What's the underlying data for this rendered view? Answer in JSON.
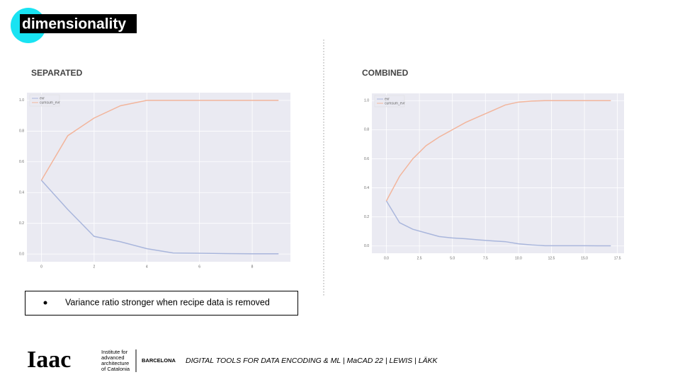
{
  "slide": {
    "title": "dimensionality",
    "bullet": "Variance ratio stronger when recipe data is removed",
    "logo": "Iaac",
    "institute": [
      "Institute for",
      "advanced",
      "architecture",
      "of Catalonia"
    ],
    "city": "BARCELONA",
    "footer": "DIGITAL TOOLS FOR DATA ENCODING & ML | MaCAD 22 | LEWIS | LÄKK"
  },
  "chart_data": [
    {
      "type": "line",
      "title": "SEPARATED",
      "legend": "upper left",
      "grid": true,
      "x": [
        0,
        1,
        2,
        3,
        4,
        5,
        6,
        7,
        8,
        9
      ],
      "series": [
        {
          "name": "evr",
          "color": "#a9b6dc",
          "values": [
            0.48,
            0.29,
            0.115,
            0.08,
            0.035,
            0.007,
            0.005,
            0.003,
            0.002,
            0.002
          ]
        },
        {
          "name": "cumsum_evr",
          "color": "#f2b59c",
          "values": [
            0.48,
            0.77,
            0.885,
            0.965,
            1.0,
            1.0,
            1.0,
            1.0,
            1.0,
            1.0
          ]
        }
      ],
      "xlim": [
        -0.55,
        9.45
      ],
      "xticks": [
        0,
        2,
        4,
        6,
        8
      ],
      "ylim": [
        -0.05,
        1.05
      ],
      "yticks": [
        {
          "value": 0,
          "label": "0.0"
        },
        0.2,
        0.4,
        0.6,
        0.8,
        {
          "value": 1,
          "label": "1.0"
        }
      ]
    },
    {
      "type": "line",
      "title": "COMBINED",
      "legend": "upper left",
      "grid": true,
      "x": [
        0,
        1,
        2,
        3,
        4,
        5,
        6,
        7,
        8,
        9,
        10,
        11,
        12,
        13,
        14,
        15,
        16,
        17
      ],
      "series": [
        {
          "name": "evr",
          "color": "#a9b6dc",
          "values": [
            0.31,
            0.16,
            0.115,
            0.09,
            0.065,
            0.055,
            0.05,
            0.042,
            0.035,
            0.03,
            0.015,
            0.007,
            0.002,
            0.002,
            0.002,
            0.002,
            0.001,
            0.001
          ]
        },
        {
          "name": "cumsum_evr",
          "color": "#f2b59c",
          "values": [
            0.31,
            0.48,
            0.6,
            0.69,
            0.75,
            0.8,
            0.85,
            0.89,
            0.93,
            0.97,
            0.99,
            0.997,
            1.0,
            1.0,
            1.0,
            1.0,
            1.0,
            1.0
          ]
        }
      ],
      "xlim": [
        -1.1,
        18.0
      ],
      "xticks": [
        {
          "value": 0,
          "label": "0.0"
        },
        2.5,
        {
          "value": 5,
          "label": "5.0"
        },
        7.5,
        {
          "value": 10,
          "label": "10.0"
        },
        12.5,
        {
          "value": 15,
          "label": "15.0"
        },
        17.5
      ],
      "ylim": [
        -0.05,
        1.05
      ],
      "yticks": [
        {
          "value": 0,
          "label": "0.0"
        },
        0.2,
        0.4,
        0.6,
        0.8,
        {
          "value": 1,
          "label": "1.0"
        }
      ]
    }
  ]
}
